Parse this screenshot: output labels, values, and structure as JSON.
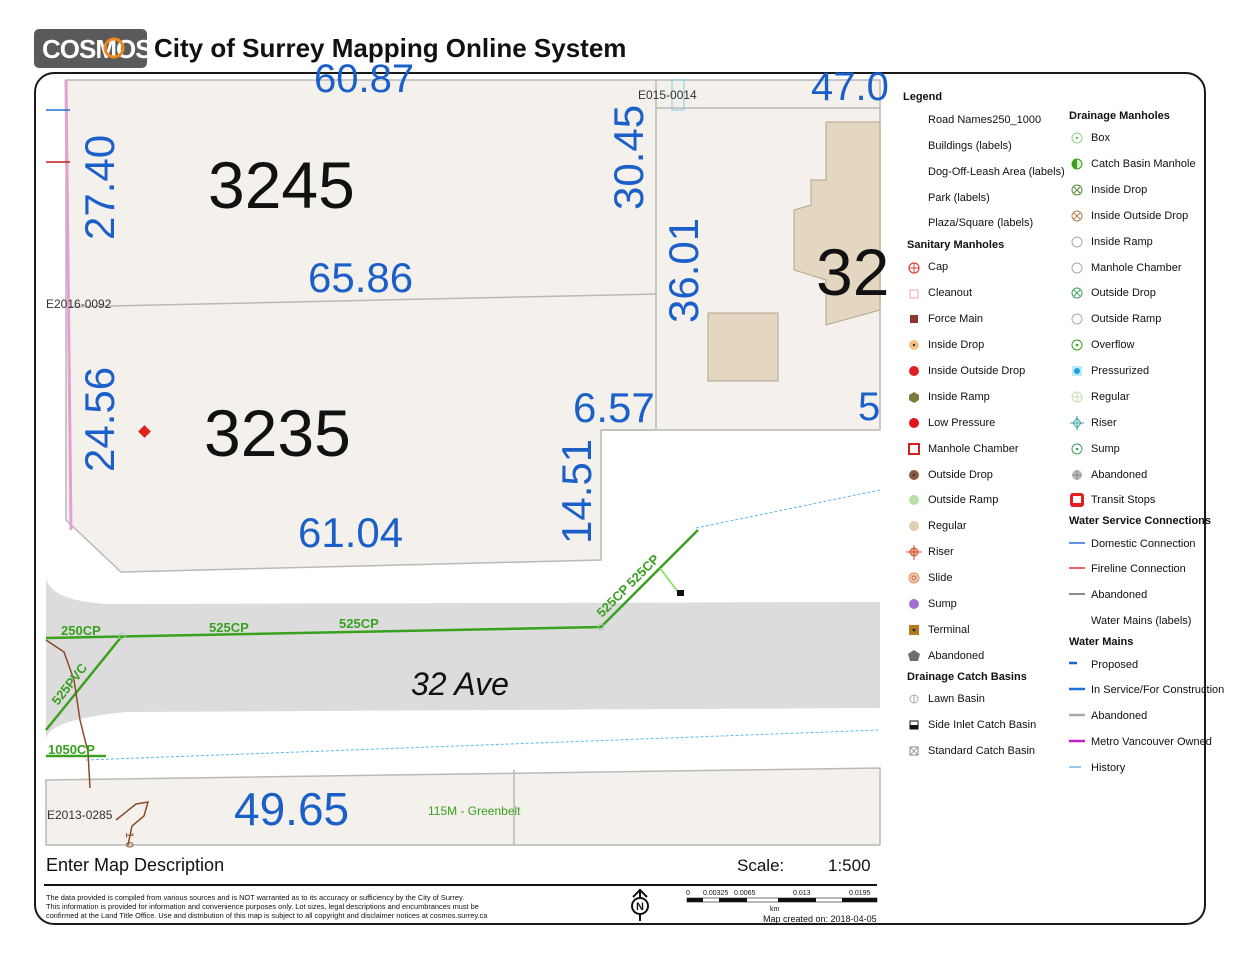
{
  "header": {
    "logo_text": "COSMOS",
    "title": "City of Surrey Mapping Online System"
  },
  "colors": {
    "parcel_fill": "#f4f1ec",
    "building_fill": "#e4d7c2",
    "road_fill": "#dcdcdc",
    "dimension_text": "#1b5fc9",
    "sanitary_line": "#3aa020",
    "storm_line": "#8b4a2a",
    "water_line": "#60b8e6",
    "park_edge": "#e3a0d4"
  },
  "map": {
    "parcel_numbers": [
      "3245",
      "3235"
    ],
    "partial_parcel_number": "32",
    "dimensions": [
      "27.40",
      "65.86",
      "30.45",
      "36.01",
      "24.56",
      "6.57",
      "14.51",
      "61.04",
      "49.65"
    ],
    "partial_dimensions": [
      "60.87",
      "47.0",
      "5"
    ],
    "plan_labels": [
      "E015-0014",
      "E2016-0092",
      "E2013-0285"
    ],
    "street_name": "32 Ave",
    "pipe_labels": [
      "250CP",
      "525CP",
      "525CP",
      "525CP",
      "525CP",
      "525PVC",
      "1050CP"
    ],
    "greenbelt_label": "115M - Greenbelt",
    "storm_label": "1-0"
  },
  "legend": {
    "title": "Legend",
    "col1_top": [
      "Road Names250_1000",
      "Buildings (labels)",
      "Dog-Off-Leash Area (labels)",
      "Park (labels)",
      "Plaza/Square (labels)"
    ],
    "sanitary": {
      "heading": "Sanitary Manholes",
      "items": [
        {
          "label": "Cap",
          "icon": "cap-icon"
        },
        {
          "label": "Cleanout",
          "icon": "cleanout-icon"
        },
        {
          "label": "Force Main",
          "icon": "force-main-icon"
        },
        {
          "label": "Inside Drop",
          "icon": "inside-drop-icon"
        },
        {
          "label": "Inside Outside Drop",
          "icon": "inside-outside-drop-icon"
        },
        {
          "label": "Inside Ramp",
          "icon": "inside-ramp-icon"
        },
        {
          "label": "Low Pressure",
          "icon": "low-pressure-icon"
        },
        {
          "label": "Manhole Chamber",
          "icon": "manhole-chamber-icon"
        },
        {
          "label": "Outside Drop",
          "icon": "outside-drop-icon"
        },
        {
          "label": "Outside Ramp",
          "icon": "outside-ramp-icon"
        },
        {
          "label": "Regular",
          "icon": "regular-icon"
        },
        {
          "label": "Riser",
          "icon": "riser-icon"
        },
        {
          "label": "Slide",
          "icon": "slide-icon"
        },
        {
          "label": "Sump",
          "icon": "sump-icon"
        },
        {
          "label": "Terminal",
          "icon": "terminal-icon"
        },
        {
          "label": "Abandoned",
          "icon": "abandoned-icon"
        }
      ]
    },
    "catch_basins": {
      "heading": "Drainage Catch Basins",
      "items": [
        {
          "label": "Lawn Basin",
          "icon": "lawn-basin-icon"
        },
        {
          "label": "Side Inlet Catch Basin",
          "icon": "side-inlet-icon"
        },
        {
          "label": "Standard Catch Basin",
          "icon": "standard-basin-icon"
        }
      ]
    },
    "drainage_manholes": {
      "heading": "Drainage Manholes",
      "items": [
        {
          "label": "Box",
          "icon": "box-icon"
        },
        {
          "label": "Catch Basin Manhole",
          "icon": "catch-basin-manhole-icon"
        },
        {
          "label": "Inside Drop",
          "icon": "inside-drop-icon"
        },
        {
          "label": "Inside Outside Drop",
          "icon": "inside-outside-drop-icon"
        },
        {
          "label": "Inside Ramp",
          "icon": "inside-ramp-icon"
        },
        {
          "label": "Manhole Chamber",
          "icon": "manhole-chamber-icon"
        },
        {
          "label": "Outside Drop",
          "icon": "outside-drop-icon"
        },
        {
          "label": "Outside Ramp",
          "icon": "outside-ramp-icon"
        },
        {
          "label": "Overflow",
          "icon": "overflow-icon"
        },
        {
          "label": "Pressurized",
          "icon": "pressurized-icon"
        },
        {
          "label": "Regular",
          "icon": "regular-icon"
        },
        {
          "label": "Riser",
          "icon": "riser-icon"
        },
        {
          "label": "Sump",
          "icon": "sump-icon"
        },
        {
          "label": "Abandoned",
          "icon": "abandoned-icon"
        },
        {
          "label": "Transit Stops",
          "icon": "transit-stop-icon"
        }
      ]
    },
    "water_service": {
      "heading": "Water Service Connections",
      "items": [
        {
          "label": "Domestic Connection",
          "color": "#2a6fd6"
        },
        {
          "label": "Fireline Connection",
          "color": "#e0301e"
        },
        {
          "label": "Abandoned",
          "color": "#8a8a8a"
        },
        {
          "label": "Water Mains (labels)",
          "color": ""
        }
      ]
    },
    "water_mains": {
      "heading": "Water Mains",
      "items": [
        {
          "label": "Proposed",
          "color": "#1f5fd0"
        },
        {
          "label": "In Service/For Construction",
          "color": "#1f6fe0"
        },
        {
          "label": "Abandoned",
          "color": "#a8a8a8"
        },
        {
          "label": "Metro Vancouver Owned",
          "color": "#c21ec8"
        },
        {
          "label": "History",
          "color": "#9cc8f0"
        }
      ]
    }
  },
  "footer": {
    "description": "Enter Map Description",
    "scale_label": "Scale:",
    "scale_value": "1:500",
    "disclaimer_lines": [
      "The data provided is compiled from various sources and is NOT warranted as to its accuracy or sufficiency by the City of Surrey.",
      "This information is provided for information and convenience purposes only.  Lot sizes, legal descriptions and encumbrances must be",
      "confirmed at the Land Title Office.  Use and distribution of this map is subject to all copyright and disclaimer notices at cosmos.surrey.ca"
    ],
    "north_label": "N",
    "scalebar_ticks": [
      "0",
      "0.00325",
      "0.0065",
      "0.013",
      "0.0195"
    ],
    "scalebar_unit": "km",
    "created": "Map created on: 2018-04-05"
  }
}
